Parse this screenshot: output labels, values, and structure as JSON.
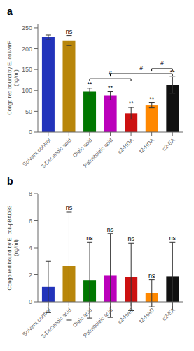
{
  "chart_data": [
    {
      "type": "bar",
      "title": "a",
      "categories": [
        "Solvent control",
        "2-Decenoic acid",
        "Oleic acid",
        "Palmitoleic acid",
        "c2-HDA",
        "t2-HDA",
        "c2-EA"
      ],
      "values": [
        228,
        220,
        97,
        87,
        45,
        64,
        113
      ],
      "errors": [
        5,
        12,
        8,
        10,
        14,
        6,
        20
      ],
      "colors": [
        "#2233bb",
        "#b8860b",
        "#007700",
        "#bb00bb",
        "#cc1111",
        "#ff8800",
        "#111111"
      ],
      "ylabel": "Congo red bound by E. coli-virF\n(ng/ml)",
      "ylim": [
        0,
        260
      ],
      "yticks": [
        0,
        50,
        100,
        150,
        200,
        250
      ],
      "grid": false,
      "annotations": [
        {
          "category": "2-Decenoic acid",
          "text": "ns"
        },
        {
          "category": "Oleic acid",
          "text": "**"
        },
        {
          "category": "Palmitoleic acid",
          "text": "**"
        },
        {
          "category": "c2-HDA",
          "text": "**"
        },
        {
          "category": "t2-HDA",
          "text": "**"
        },
        {
          "category": "c2-EA",
          "text": "**"
        },
        {
          "x1": "Oleic acid",
          "x2": "c2-HDA",
          "y": 128,
          "text": "#"
        },
        {
          "x1": "Palmitoleic acid",
          "x2": "c2-EA",
          "y": 140,
          "text": "#"
        },
        {
          "x1": "t2-HDA",
          "x2": "c2-EA",
          "y": 152,
          "text": "#"
        }
      ]
    },
    {
      "type": "bar",
      "title": "b",
      "categories": [
        "Solvent control",
        "2-Decenoic acid",
        "Oleic acid",
        "Palmitoleic acid",
        "c2-HAD",
        "t2-HAD",
        "c2-EA"
      ],
      "values": [
        1.1,
        2.65,
        1.6,
        1.95,
        1.85,
        0.63,
        1.9
      ],
      "errors": [
        1.9,
        4.0,
        2.8,
        3.1,
        2.5,
        1.0,
        2.5
      ],
      "colors": [
        "#2233bb",
        "#b8860b",
        "#007700",
        "#bb00bb",
        "#cc1111",
        "#ff8800",
        "#111111"
      ],
      "ylabel": "Congo red bound by E. coli-pBAD33\n(ng/ml)",
      "ylim": [
        0,
        8
      ],
      "yticks": [
        0,
        2,
        4,
        6,
        8
      ],
      "grid": false,
      "annotations": [
        {
          "category": "2-Decenoic acid",
          "text": "ns"
        },
        {
          "category": "Oleic acid",
          "text": "ns"
        },
        {
          "category": "Palmitoleic acid",
          "text": "ns"
        },
        {
          "category": "c2-HAD",
          "text": "ns"
        },
        {
          "category": "t2-HAD",
          "text": "ns"
        },
        {
          "category": "c2-EA",
          "text": "ns"
        }
      ]
    }
  ]
}
